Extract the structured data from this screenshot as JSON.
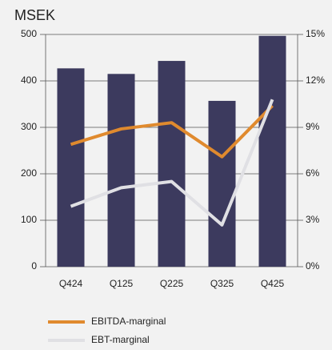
{
  "chart_data": {
    "type": "bar",
    "title": "MSEK",
    "categories": [
      "Q424",
      "Q125",
      "Q225",
      "Q325",
      "Q425"
    ],
    "series": [
      {
        "name": "MSEK",
        "type": "bar",
        "color": "#3c3a5e",
        "values": [
          427,
          415,
          443,
          357,
          497
        ]
      },
      {
        "name": "EBITDA-marginal",
        "type": "line",
        "axis": "y2",
        "color": "#e08a2e",
        "values": [
          7.9,
          8.9,
          9.3,
          7.1,
          10.4
        ]
      },
      {
        "name": "EBT-marginal",
        "type": "line",
        "axis": "y2",
        "color": "#e0e0e4",
        "values": [
          3.9,
          5.1,
          5.5,
          2.7,
          10.8
        ]
      }
    ],
    "ylim": [
      0,
      500
    ],
    "yticks": [
      0,
      100,
      200,
      300,
      400,
      500
    ],
    "y2lim": [
      0,
      15
    ],
    "y2ticks": [
      {
        "value": 0,
        "label": "0%"
      },
      {
        "value": 3,
        "label": "3%"
      },
      {
        "value": 6,
        "label": "6%"
      },
      {
        "value": 9,
        "label": "9%"
      },
      {
        "value": 12,
        "label": "12%"
      },
      {
        "value": 15,
        "label": "15%"
      }
    ],
    "grid": true
  }
}
